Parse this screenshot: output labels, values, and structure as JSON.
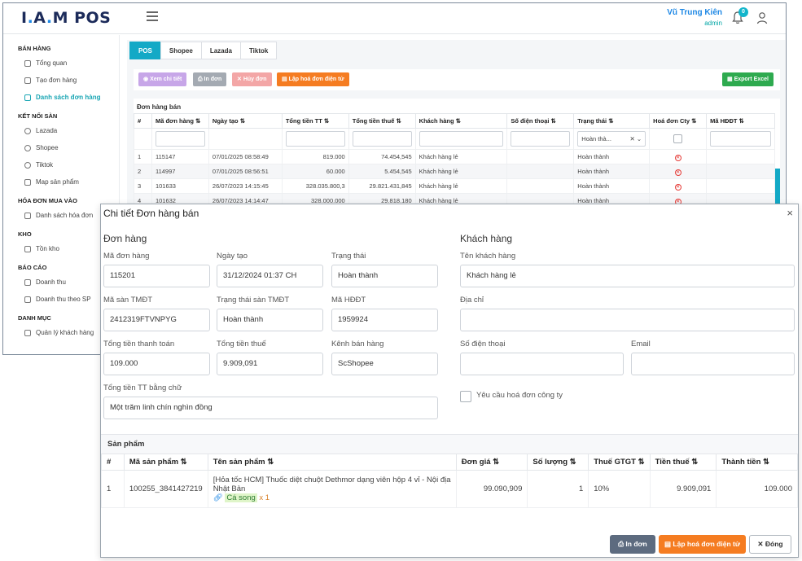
{
  "app": {
    "logo": "I.A.M POS",
    "user_name": "Vũ Trung Kiên",
    "user_role": "admin",
    "notification_count": "0"
  },
  "sidebar": {
    "groups": [
      {
        "title": "BÁN HÀNG",
        "items": [
          {
            "label": "Tổng quan",
            "icon": "monitor-icon"
          },
          {
            "label": "Tạo đơn hàng",
            "icon": "cart-icon"
          },
          {
            "label": "Danh sách đơn hàng",
            "icon": "list-icon",
            "active": true
          }
        ]
      },
      {
        "title": "KẾT NỐI SÀN",
        "items": [
          {
            "label": "Lazada",
            "icon": "circle-icon"
          },
          {
            "label": "Shopee",
            "icon": "circle-icon"
          },
          {
            "label": "Tiktok",
            "icon": "circle-icon"
          },
          {
            "label": "Map sản phẩm",
            "icon": "share-icon"
          }
        ]
      },
      {
        "title": "HÓA ĐƠN MUA VÀO",
        "items": [
          {
            "label": "Danh sách hóa đơn",
            "icon": "list-icon"
          }
        ]
      },
      {
        "title": "KHO",
        "items": [
          {
            "label": "Tồn kho",
            "icon": "grid-icon"
          }
        ]
      },
      {
        "title": "BÁO CÁO",
        "items": [
          {
            "label": "Doanh thu",
            "icon": "chart-icon"
          },
          {
            "label": "Doanh thu theo SP",
            "icon": "bar-chart-icon"
          }
        ]
      },
      {
        "title": "DANH MỤC",
        "items": [
          {
            "label": "Quản lý khách hàng",
            "icon": "users-icon"
          }
        ]
      }
    ]
  },
  "tabs": [
    "POS",
    "Shopee",
    "Lazada",
    "Tiktok"
  ],
  "toolbar": {
    "view_detail": "Xem chi tiết",
    "print": "In đơn",
    "cancel": "Hủy đơn",
    "create_invoice": "Lập hoá đơn điện tử",
    "export": "Export Excel"
  },
  "orders": {
    "panel_title": "Đơn hàng bán",
    "columns": [
      "#",
      "Mã đơn hàng",
      "Ngày tạo",
      "Tổng tiền TT",
      "Tổng tiền thuế",
      "Khách hàng",
      "Số điện thoại",
      "Trạng thái",
      "Hoá đơn Cty",
      "Mã HĐĐT"
    ],
    "status_filter": "Hoàn thà...",
    "rows": [
      {
        "no": "1",
        "code": "115147",
        "date": "07/01/2025 08:58:49",
        "total": "819.000",
        "tax": "74.454,545",
        "customer": "Khách hàng lẻ",
        "phone": "",
        "status": "Hoàn thành"
      },
      {
        "no": "2",
        "code": "114997",
        "date": "07/01/2025 08:56:51",
        "total": "60.000",
        "tax": "5.454,545",
        "customer": "Khách hàng lẻ",
        "phone": "",
        "status": "Hoàn thành"
      },
      {
        "no": "3",
        "code": "101633",
        "date": "26/07/2023 14:15:45",
        "total": "328.035.800,3",
        "tax": "29.821.431,845",
        "customer": "Khách hàng lẻ",
        "phone": "",
        "status": "Hoàn thành"
      },
      {
        "no": "4",
        "code": "101632",
        "date": "26/07/2023 14:14:47",
        "total": "328.000.000",
        "tax": "29.818.180",
        "customer": "Khách hàng lẻ",
        "phone": "",
        "status": "Hoàn thành"
      }
    ]
  },
  "modal": {
    "title": "Chi tiết Đơn hàng bán",
    "order_section": "Đơn hàng",
    "customer_section": "Khách hàng",
    "fields": {
      "order_code": {
        "label": "Mã đơn hàng",
        "value": "115201"
      },
      "created": {
        "label": "Ngày tạo",
        "value": "31/12/2024  01:37  CH"
      },
      "status": {
        "label": "Trạng thái",
        "value": "Hoàn thành"
      },
      "platform_code": {
        "label": "Mã sàn TMĐT",
        "value": "2412319FTVNPYG"
      },
      "platform_status": {
        "label": "Trạng thái sàn TMĐT",
        "value": "Hoàn thành"
      },
      "einvoice_code": {
        "label": "Mã HĐĐT",
        "value": "1959924"
      },
      "total_payment": {
        "label": "Tổng tiền thanh toán",
        "value": "109.000"
      },
      "total_tax": {
        "label": "Tổng tiền thuế",
        "value": "9.909,091"
      },
      "channel": {
        "label": "Kênh bán hàng",
        "value": "ScShopee"
      },
      "total_words": {
        "label": "Tổng tiền TT bằng chữ",
        "value": "Một trăm linh chín nghìn đồng"
      },
      "customer_name": {
        "label": "Tên khách hàng",
        "value": "Khách hàng lẻ"
      },
      "address": {
        "label": "Địa chỉ",
        "value": ""
      },
      "phone": {
        "label": "Số điện thoại",
        "value": ""
      },
      "email": {
        "label": "Email",
        "value": ""
      },
      "company_invoice": {
        "label": "Yêu cầu hoá đơn công ty"
      }
    },
    "products_title": "Sản phẩm",
    "product_columns": [
      "#",
      "Mã sản phẩm",
      "Tên sản phẩm",
      "Đơn giá",
      "Số lượng",
      "Thuế GTGT",
      "Tiền thuế",
      "Thành tiền"
    ],
    "products": [
      {
        "no": "1",
        "code": "100255_3841427219",
        "name": "[Hỏa tốc HCM] Thuốc diệt chuột Dethmor dạng viên hộp 4 vỉ - Nội địa Nhật Bản",
        "variant": "Cá song",
        "variant_qty": "x 1",
        "price": "99.090,909",
        "qty": "1",
        "vat": "10%",
        "tax": "9.909,091",
        "amount": "109.000"
      }
    ],
    "buttons": {
      "print": "In đơn",
      "einvoice": "Lập hoá đơn điện tử",
      "close": "Đóng"
    }
  }
}
